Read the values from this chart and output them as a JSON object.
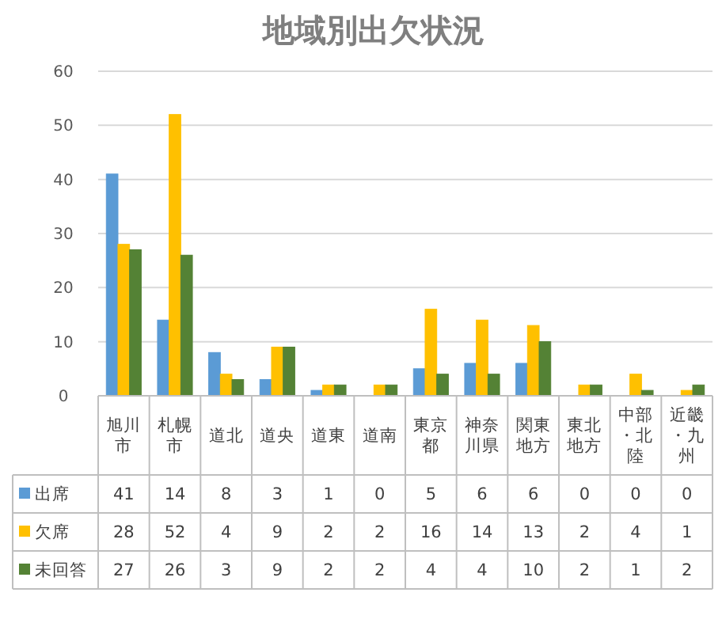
{
  "chart_data": {
    "type": "bar",
    "title": "地域別出欠状況",
    "categories": [
      "旭川市",
      "札幌市",
      "道北",
      "道央",
      "道東",
      "道南",
      "東京都",
      "神奈川県",
      "関東地方",
      "東北地方",
      "中部・北陸",
      "近畿・九州"
    ],
    "series": [
      {
        "name": "出席",
        "color": "#5b9bd5",
        "values": [
          41,
          14,
          8,
          3,
          1,
          0,
          5,
          6,
          6,
          0,
          0,
          0
        ]
      },
      {
        "name": "欠席",
        "color": "#ffc000",
        "values": [
          28,
          52,
          4,
          9,
          2,
          2,
          16,
          14,
          13,
          2,
          4,
          1
        ]
      },
      {
        "name": "未回答",
        "color": "#548235",
        "values": [
          27,
          26,
          3,
          9,
          2,
          2,
          4,
          4,
          10,
          2,
          1,
          2
        ]
      }
    ],
    "ylim": [
      0,
      60
    ],
    "yticks": [
      0,
      10,
      20,
      30,
      40,
      50,
      60
    ],
    "grid": "y",
    "data_labels": true,
    "legend": "bottom"
  }
}
